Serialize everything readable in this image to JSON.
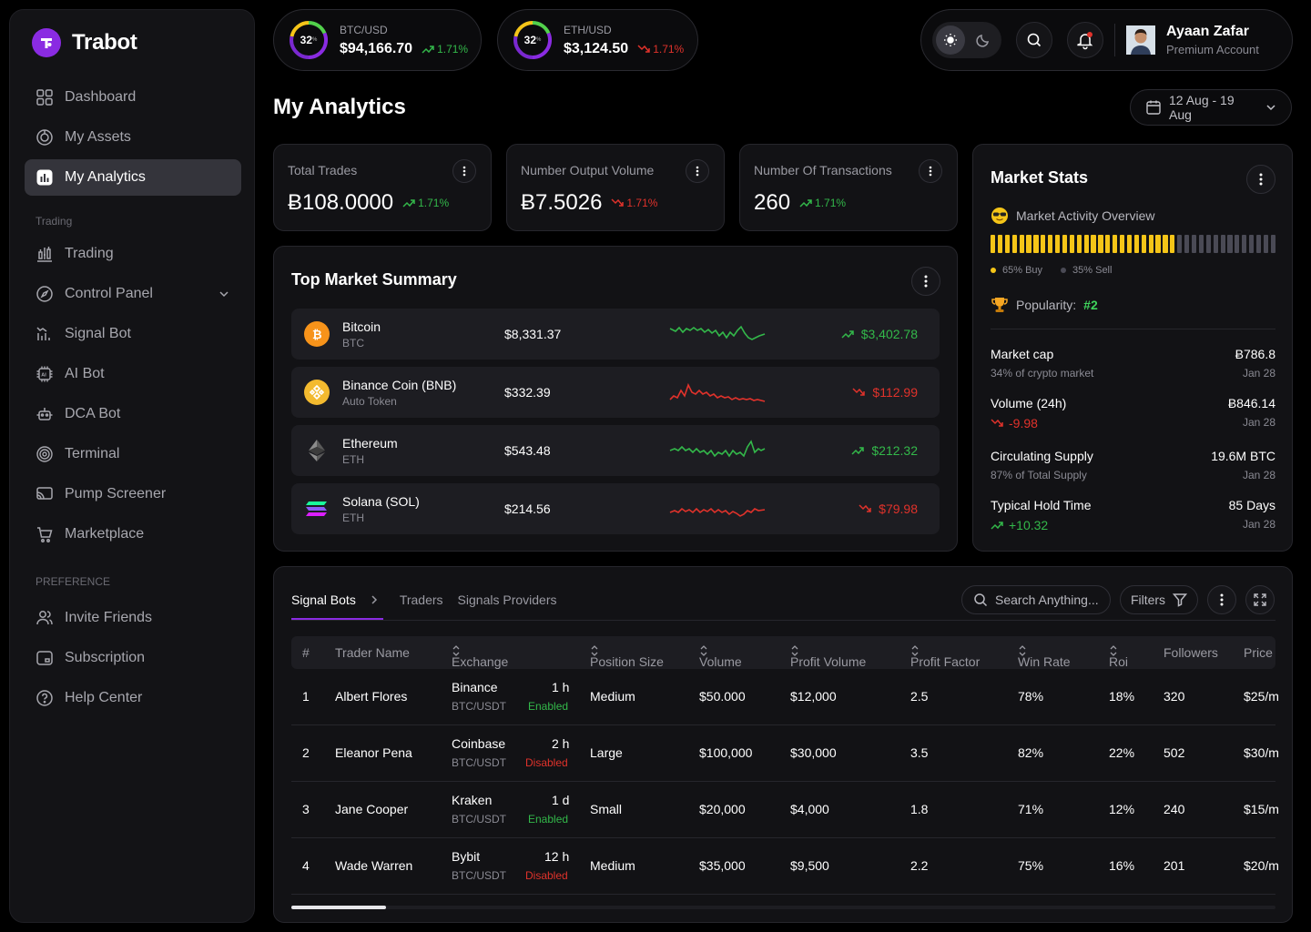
{
  "brand": {
    "name": "Trabot"
  },
  "sidebar": {
    "items": [
      {
        "label": "Dashboard",
        "icon": "grid-icon"
      },
      {
        "label": "My Assets",
        "icon": "assets-icon"
      },
      {
        "label": "My Analytics",
        "icon": "analytics-icon",
        "active": true
      }
    ],
    "trading_section": "Trading",
    "trading_items": [
      {
        "label": "Trading",
        "icon": "trading-icon"
      },
      {
        "label": "Control Panel",
        "icon": "compass-icon"
      },
      {
        "label": "Signal Bot",
        "icon": "signal-icon"
      },
      {
        "label": "AI Bot",
        "icon": "ai-chip-icon"
      },
      {
        "label": "DCA Bot",
        "icon": "robot-icon"
      },
      {
        "label": "Terminal",
        "icon": "fingerprint-icon"
      },
      {
        "label": "Pump Screener",
        "icon": "screen-icon"
      },
      {
        "label": "Marketplace",
        "icon": "cart-icon"
      }
    ],
    "preference_section": "PREFERENCE",
    "preference_items": [
      {
        "label": "Invite Friends",
        "icon": "users-icon"
      },
      {
        "label": "Subscription",
        "icon": "subscription-icon"
      },
      {
        "label": "Help Center",
        "icon": "help-icon"
      }
    ]
  },
  "tickers": [
    {
      "pair": "BTC/USD",
      "price": "$94,166.70",
      "change": "1.71%",
      "direction": "up",
      "gauge": "32",
      "gauge_pct": "%"
    },
    {
      "pair": "ETH/USD",
      "price": "$3,124.50",
      "change": "1.71%",
      "direction": "down",
      "gauge": "32",
      "gauge_pct": "%"
    }
  ],
  "user": {
    "name": "Ayaan Zafar",
    "plan": "Premium Account"
  },
  "page": {
    "title": "My Analytics",
    "date_range": "12 Aug - 19 Aug"
  },
  "stats": [
    {
      "label": "Total Trades",
      "value": "Ƀ108.0000",
      "change": "1.71%",
      "direction": "up"
    },
    {
      "label": "Number Output Volume",
      "value": "Ƀ7.5026",
      "change": "1.71%",
      "direction": "down"
    },
    {
      "label": "Number Of Transactions",
      "value": "260",
      "change": "1.71%",
      "direction": "up"
    }
  ],
  "market_summary": {
    "title": "Top Market Summary",
    "rows": [
      {
        "name": "Bitcoin",
        "symbol": "BTC",
        "price": "$8,331.37",
        "change": "$3,402.78",
        "direction": "up",
        "icon": "bitcoin-icon"
      },
      {
        "name": "Binance Coin (BNB)",
        "symbol": "Auto Token",
        "price": "$332.39",
        "change": "$112.99",
        "direction": "down",
        "icon": "bnb-icon"
      },
      {
        "name": "Ethereum",
        "symbol": "ETH",
        "price": "$543.48",
        "change": "$212.32",
        "direction": "up",
        "icon": "ethereum-icon"
      },
      {
        "name": "Solana (SOL)",
        "symbol": "ETH",
        "price": "$214.56",
        "change": "$79.98",
        "direction": "down",
        "icon": "solana-icon"
      }
    ]
  },
  "market_stats": {
    "title": "Market Stats",
    "overview": "Market Activity Overview",
    "buy_label": "65% Buy",
    "sell_label": "35% Sell",
    "buy_fraction": 0.65,
    "popularity_label": "Popularity:",
    "popularity_value": "#2",
    "rows": [
      {
        "key": "Market cap",
        "sub": "34% of crypto market",
        "value": "Ƀ786.8",
        "date": "Jan 28"
      },
      {
        "key": "Volume (24h)",
        "sub": "-9.98",
        "sub_direction": "down",
        "value": "Ƀ846.14",
        "date": "Jan 28"
      },
      {
        "key": "Circulating Supply",
        "sub": "87% of Total Supply",
        "value": "19.6M BTC",
        "date": "Jan 28"
      },
      {
        "key": "Typical Hold Time",
        "sub": "+10.32",
        "sub_direction": "up",
        "value": "85 Days",
        "date": "Jan 28"
      }
    ]
  },
  "table": {
    "tabs": [
      "Signal Bots",
      "Traders",
      "Signals Providers"
    ],
    "search_placeholder": "Search Anything...",
    "filters_label": "Filters",
    "columns": [
      "#",
      "Trader Name",
      "Exchange",
      "Position Size",
      "Volume",
      "Profit Volume",
      "Profit Factor",
      "Win Rate",
      "Roi",
      "Followers",
      "Price"
    ],
    "rows": [
      {
        "n": "1",
        "trader": "Albert Flores",
        "exchange": "Binance",
        "pair": "BTC/USDT",
        "duration": "1 h",
        "status": "Enabled",
        "position": "Medium",
        "volume": "$50.000",
        "profit": "$12,000",
        "factor": "2.5",
        "win": "78%",
        "roi": "18%",
        "followers": "320",
        "price": "$25/m"
      },
      {
        "n": "2",
        "trader": "Eleanor Pena",
        "exchange": "Coinbase",
        "pair": "BTC/USDT",
        "duration": "2 h",
        "status": "Disabled",
        "position": "Large",
        "volume": "$100,000",
        "profit": "$30,000",
        "factor": "3.5",
        "win": "82%",
        "roi": "22%",
        "followers": "502",
        "price": "$30/m"
      },
      {
        "n": "3",
        "trader": "Jane Cooper",
        "exchange": "Kraken",
        "pair": "BTC/USDT",
        "duration": "1 d",
        "status": "Enabled",
        "position": "Small",
        "volume": "$20,000",
        "profit": "$4,000",
        "factor": "1.8",
        "win": "71%",
        "roi": "12%",
        "followers": "240",
        "price": "$15/m"
      },
      {
        "n": "4",
        "trader": "Wade Warren",
        "exchange": "Bybit",
        "pair": "BTC/USDT",
        "duration": "12 h",
        "status": "Disabled",
        "position": "Medium",
        "volume": "$35,000",
        "profit": "$9,500",
        "factor": "2.2",
        "win": "75%",
        "roi": "16%",
        "followers": "201",
        "price": "$20/m"
      }
    ]
  },
  "colors": {
    "accent": "#8a2be2",
    "up": "#33b84a",
    "down": "#e0322b",
    "buy": "#f5c518",
    "sell": "#4a4a55"
  }
}
